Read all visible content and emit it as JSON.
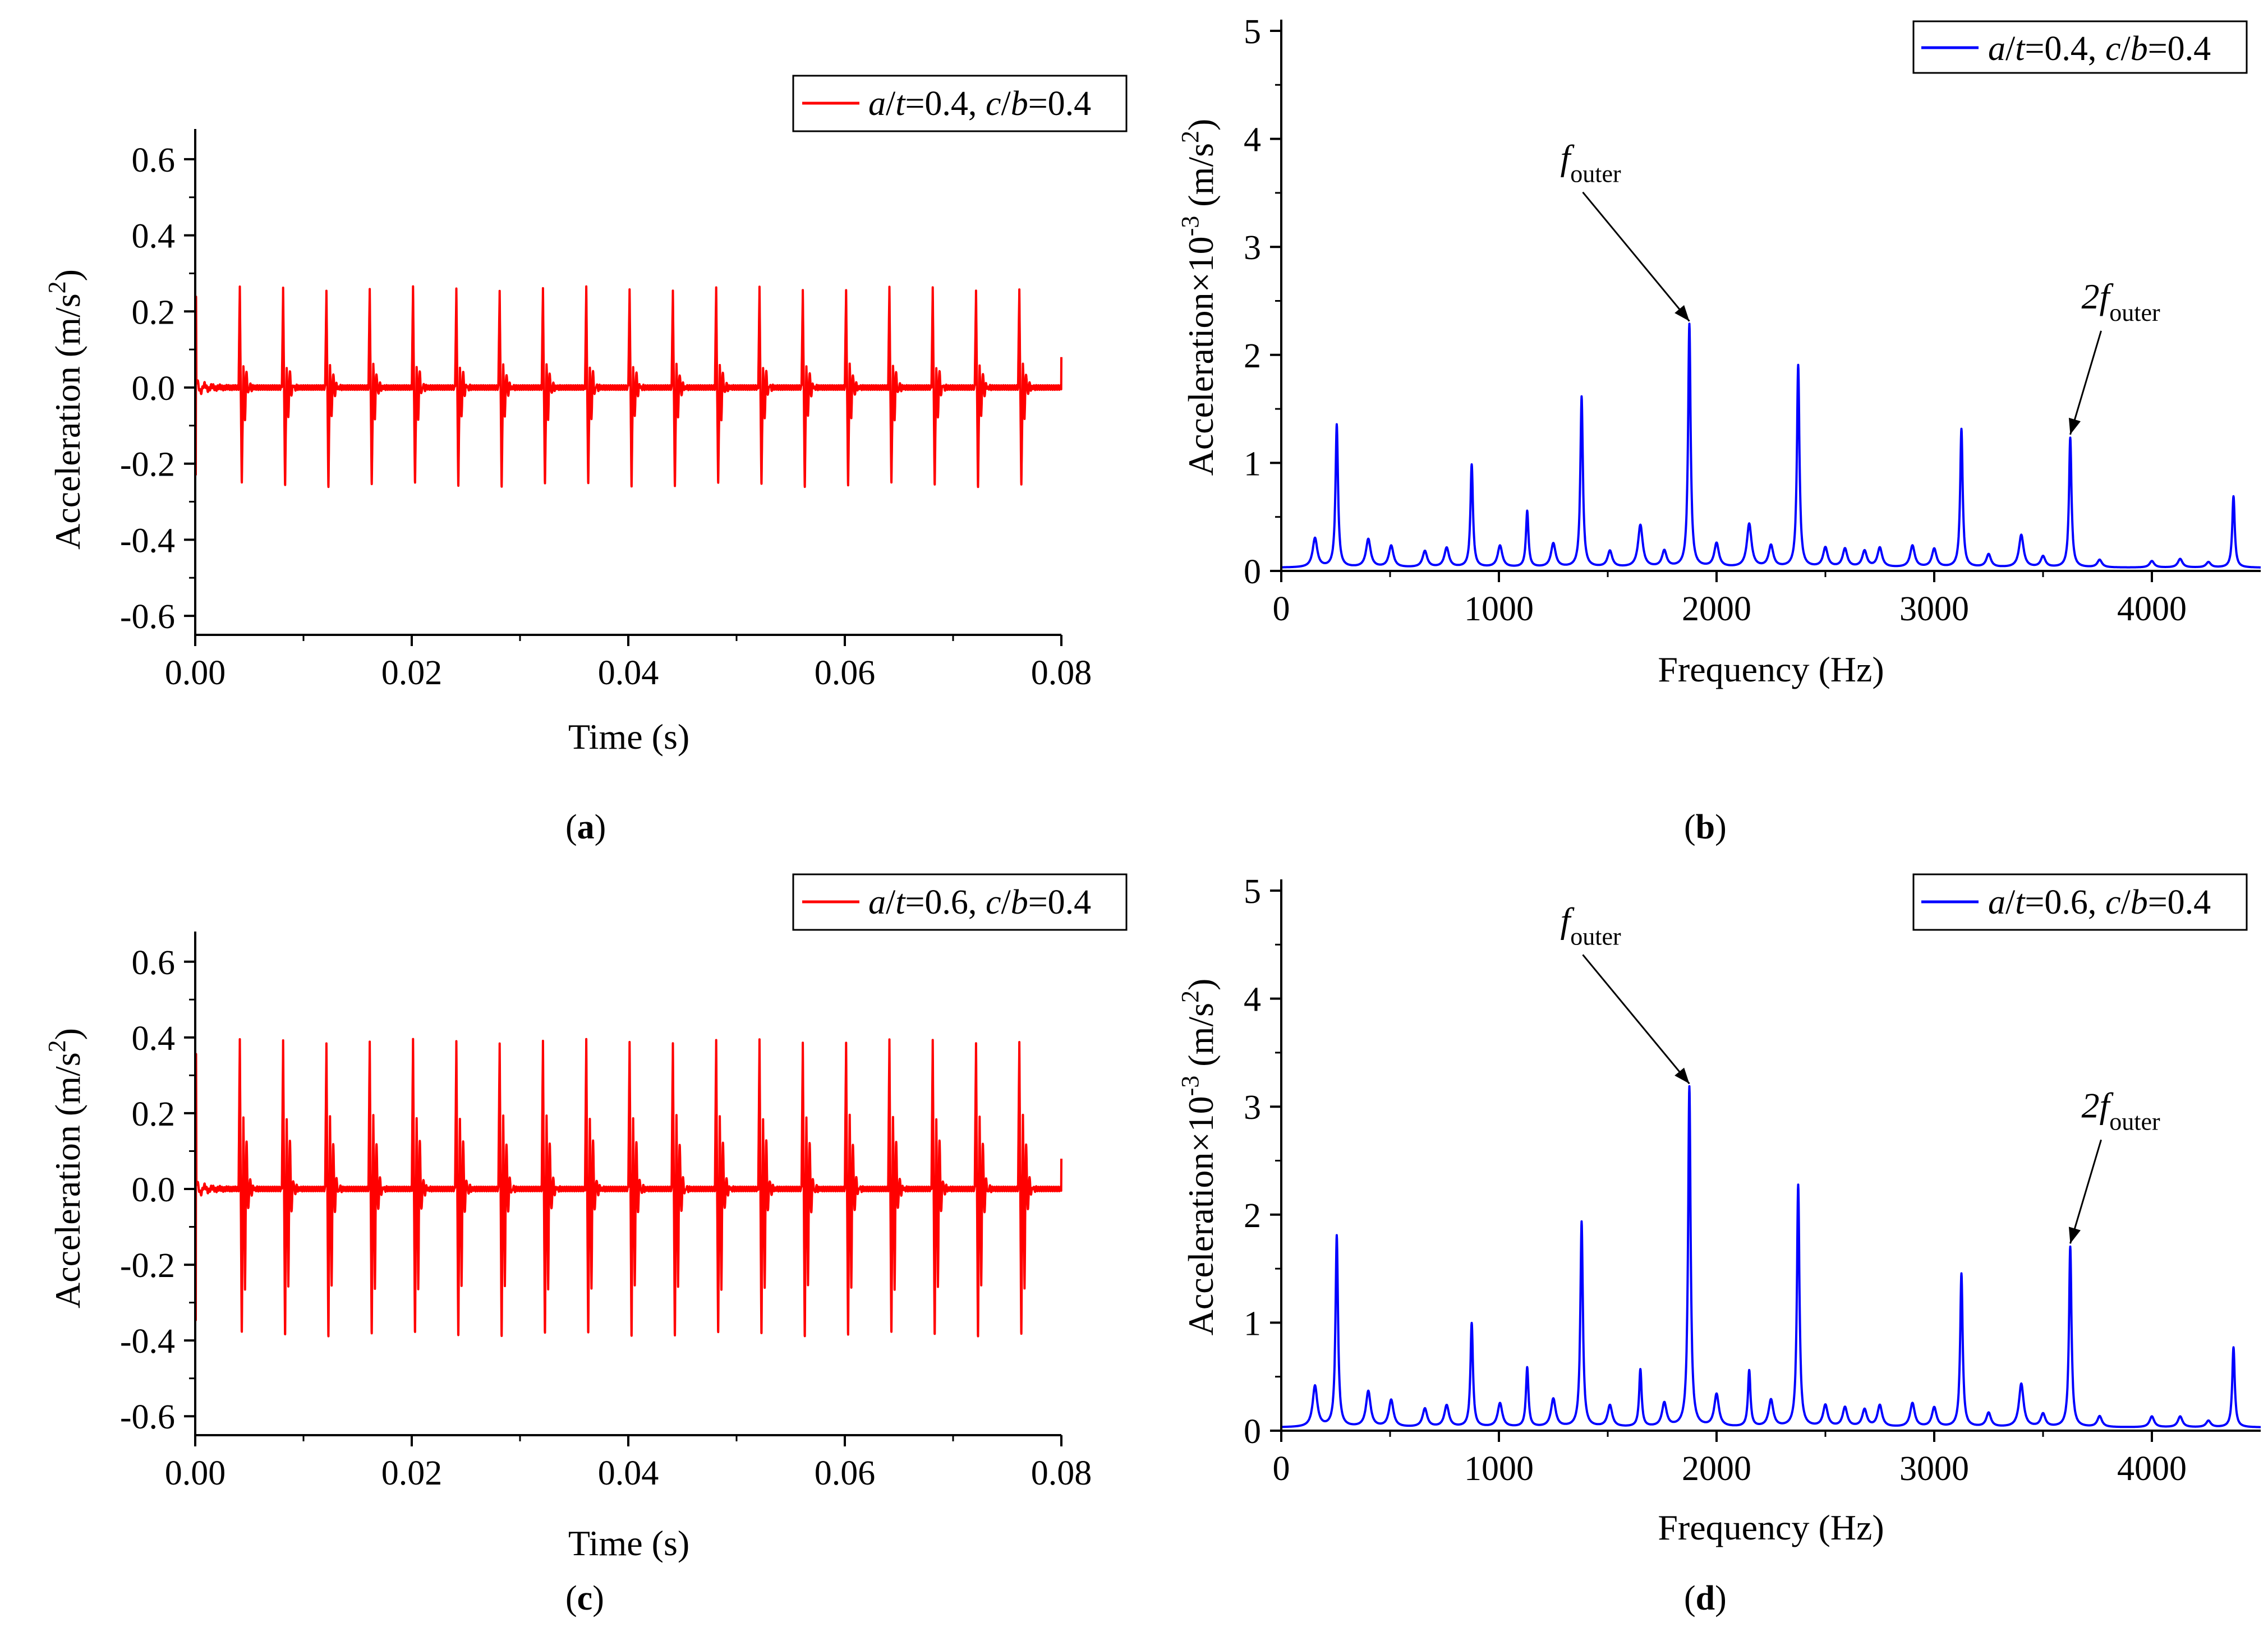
{
  "chart_data": [
    {
      "id": "a",
      "type": "line",
      "caption": "a",
      "xlabel": "Time (s)",
      "ylabel": "Acceleration (m/s²)",
      "ylabel_main": "Acceleration (m/s",
      "ylabel_sup": "2",
      "ylabel_close": ")",
      "xlim": [
        0.0,
        0.08
      ],
      "ylim": [
        -0.65,
        0.65
      ],
      "xticks": [
        0.0,
        0.02,
        0.04,
        0.06,
        0.08
      ],
      "xtick_labels": [
        "0.00",
        "0.02",
        "0.04",
        "0.06",
        "0.08"
      ],
      "yticks": [
        0.6,
        0.4,
        0.2,
        0.0,
        -0.2,
        -0.4,
        -0.6
      ],
      "ytick_labels": [
        "0.6",
        "0.4",
        "0.2",
        "0.0",
        "-0.2",
        "-0.4",
        "-0.6"
      ],
      "color": "#ff0000",
      "legend": {
        "v1": "a",
        "s1": "/",
        "v2": "t",
        "e1": "=0.4, ",
        "v3": "c",
        "s2": "/",
        "v4": "b",
        "e2": "=0.4"
      },
      "series": [
        {
          "name": "a/t=0.4, c/b=0.4",
          "period": 0.004,
          "start": 0.0,
          "end": 0.08,
          "peak_pos": 0.26,
          "peak_neg": -0.27,
          "second_pos": 0.06,
          "second_neg": -0.08
        }
      ]
    },
    {
      "id": "b",
      "type": "line",
      "caption": "b",
      "xlabel": "Frequency (Hz)",
      "ylabel": "Acceleration×10⁻³ (m/s²)",
      "ylabel_main": "Acceleration×10",
      "ylabel_exp": "-3",
      "ylabel_unit": " (m/s",
      "ylabel_sup": "2",
      "ylabel_close": ")",
      "xlim": [
        0,
        4500
      ],
      "ylim": [
        0,
        5
      ],
      "xticks": [
        0,
        1000,
        2000,
        3000,
        4000
      ],
      "xtick_labels": [
        "0",
        "1000",
        "2000",
        "3000",
        "4000"
      ],
      "yticks": [
        0,
        1,
        2,
        3,
        4,
        5
      ],
      "ytick_labels": [
        "0",
        "1",
        "2",
        "3",
        "4",
        "5"
      ],
      "color": "#0000ff",
      "legend": {
        "v1": "a",
        "s1": "/",
        "v2": "t",
        "e1": "=0.4, ",
        "v3": "c",
        "s2": "/",
        "v4": "b",
        "e2": "=0.4"
      },
      "annotations": [
        {
          "label": "f",
          "sub": "outer",
          "x": 1875,
          "y": 2.25
        },
        {
          "label": "2f",
          "sub": "outer",
          "x": 3625,
          "y": 1.2
        }
      ],
      "series": [
        {
          "name": "a/t=0.4, c/b=0.4",
          "peaks": [
            [
              155,
              0.27
            ],
            [
              255,
              1.32
            ],
            [
              400,
              0.26
            ],
            [
              505,
              0.2
            ],
            [
              660,
              0.15
            ],
            [
              760,
              0.18
            ],
            [
              875,
              0.95
            ],
            [
              1005,
              0.2
            ],
            [
              1130,
              0.52
            ],
            [
              1250,
              0.22
            ],
            [
              1380,
              1.58
            ],
            [
              1510,
              0.15
            ],
            [
              1650,
              0.39
            ],
            [
              1760,
              0.15
            ],
            [
              1875,
              2.25
            ],
            [
              2000,
              0.22
            ],
            [
              2150,
              0.4
            ],
            [
              2250,
              0.2
            ],
            [
              2375,
              1.87
            ],
            [
              2500,
              0.18
            ],
            [
              2590,
              0.17
            ],
            [
              2680,
              0.15
            ],
            [
              2750,
              0.18
            ],
            [
              2900,
              0.2
            ],
            [
              3000,
              0.17
            ],
            [
              3125,
              1.28
            ],
            [
              3250,
              0.12
            ],
            [
              3400,
              0.3
            ],
            [
              3500,
              0.1
            ],
            [
              3625,
              1.2
            ],
            [
              3760,
              0.07
            ],
            [
              4000,
              0.06
            ],
            [
              4130,
              0.08
            ],
            [
              4260,
              0.05
            ],
            [
              4375,
              0.66
            ]
          ]
        }
      ]
    },
    {
      "id": "c",
      "type": "line",
      "caption": "c",
      "xlabel": "Time (s)",
      "ylabel": "Acceleration (m/s²)",
      "ylabel_main": "Acceleration (m/s",
      "ylabel_sup": "2",
      "ylabel_close": ")",
      "xlim": [
        0.0,
        0.08
      ],
      "ylim": [
        -0.65,
        0.65
      ],
      "xticks": [
        0.0,
        0.02,
        0.04,
        0.06,
        0.08
      ],
      "xtick_labels": [
        "0.00",
        "0.02",
        "0.04",
        "0.06",
        "0.08"
      ],
      "yticks": [
        0.6,
        0.4,
        0.2,
        0.0,
        -0.2,
        -0.4,
        -0.6
      ],
      "ytick_labels": [
        "0.6",
        "0.4",
        "0.2",
        "0.0",
        "-0.2",
        "-0.4",
        "-0.6"
      ],
      "color": "#ff0000",
      "legend": {
        "v1": "a",
        "s1": "/",
        "v2": "t",
        "e1": "=0.6, ",
        "v3": "c",
        "s2": "/",
        "v4": "b",
        "e2": "=0.4"
      },
      "series": [
        {
          "name": "a/t=0.6, c/b=0.4",
          "period": 0.004,
          "start": 0.0,
          "end": 0.08,
          "peak_pos": 0.39,
          "peak_neg": -0.41,
          "second_pos": 0.2,
          "second_neg": -0.26
        }
      ]
    },
    {
      "id": "d",
      "type": "line",
      "caption": "d",
      "xlabel": "Frequency (Hz)",
      "ylabel": "Acceleration×10⁻³ (m/s²)",
      "ylabel_main": "Acceleration×10",
      "ylabel_exp": "-3",
      "ylabel_unit": " (m/s",
      "ylabel_sup": "2",
      "ylabel_close": ")",
      "xlim": [
        0,
        4500
      ],
      "ylim": [
        0,
        5
      ],
      "xticks": [
        0,
        1000,
        2000,
        3000,
        4000
      ],
      "xtick_labels": [
        "0",
        "1000",
        "2000",
        "3000",
        "4000"
      ],
      "yticks": [
        0,
        1,
        2,
        3,
        4,
        5
      ],
      "ytick_labels": [
        "0",
        "1",
        "2",
        "3",
        "4",
        "5"
      ],
      "color": "#0000ff",
      "legend": {
        "v1": "a",
        "s1": "/",
        "v2": "t",
        "e1": "=0.6, ",
        "v3": "c",
        "s2": "/",
        "v4": "b",
        "e2": "=0.4"
      },
      "annotations": [
        {
          "label": "f",
          "sub": "outer",
          "x": 1875,
          "y": 3.15
        },
        {
          "label": "2f",
          "sub": "outer",
          "x": 3625,
          "y": 1.67
        }
      ],
      "series": [
        {
          "name": "a/t=0.6, c/b=0.4",
          "peaks": [
            [
              155,
              0.38
            ],
            [
              255,
              1.77
            ],
            [
              400,
              0.33
            ],
            [
              505,
              0.25
            ],
            [
              660,
              0.17
            ],
            [
              760,
              0.2
            ],
            [
              875,
              0.96
            ],
            [
              1005,
              0.22
            ],
            [
              1130,
              0.55
            ],
            [
              1250,
              0.26
            ],
            [
              1380,
              1.9
            ],
            [
              1510,
              0.2
            ],
            [
              1650,
              0.53
            ],
            [
              1760,
              0.22
            ],
            [
              1875,
              3.15
            ],
            [
              2000,
              0.3
            ],
            [
              2150,
              0.52
            ],
            [
              2250,
              0.25
            ],
            [
              2375,
              2.24
            ],
            [
              2500,
              0.2
            ],
            [
              2590,
              0.18
            ],
            [
              2680,
              0.16
            ],
            [
              2750,
              0.2
            ],
            [
              2900,
              0.22
            ],
            [
              3000,
              0.18
            ],
            [
              3125,
              1.42
            ],
            [
              3250,
              0.13
            ],
            [
              3400,
              0.4
            ],
            [
              3500,
              0.12
            ],
            [
              3625,
              1.67
            ],
            [
              3760,
              0.1
            ],
            [
              4000,
              0.1
            ],
            [
              4130,
              0.1
            ],
            [
              4260,
              0.06
            ],
            [
              4375,
              0.74
            ]
          ]
        }
      ]
    }
  ]
}
